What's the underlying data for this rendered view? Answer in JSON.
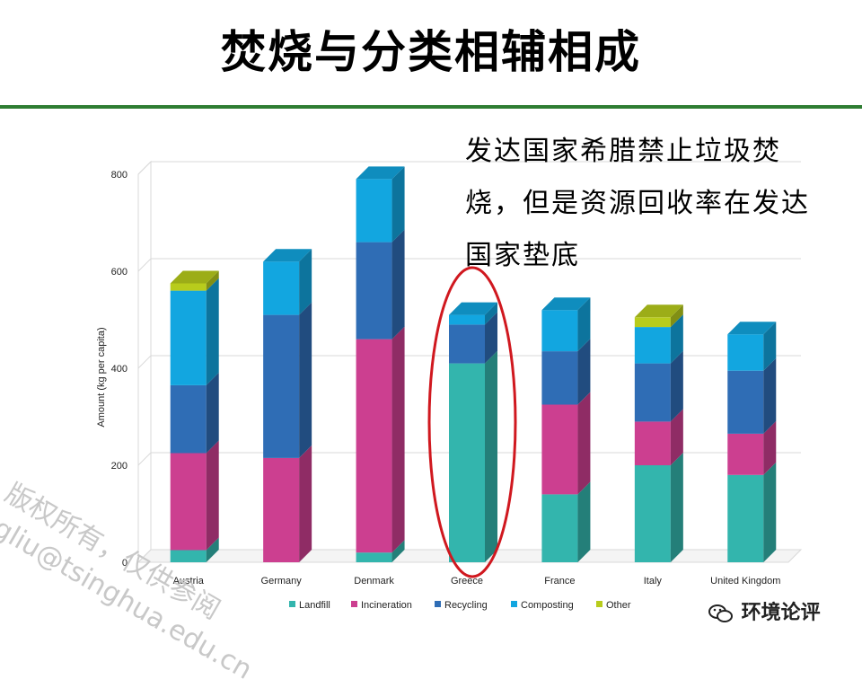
{
  "title": "焚烧与分类相辅相成",
  "callout_lines": [
    "发达国家希腊禁止垃圾焚",
    "烧，但是资源回收率在发达",
    "国家垫底"
  ],
  "watermark_lines": [
    "版权所有，仅供参阅",
    "jgliu@tsinghua.edu.cn"
  ],
  "wechat_label": "环境论评",
  "chart_data": {
    "type": "bar",
    "stacked": true,
    "categories": [
      "Austria",
      "Germany",
      "Denmark",
      "Greece",
      "France",
      "Italy",
      "United Kingdom"
    ],
    "ylabel": "Amount (kg per capita)",
    "ylim": [
      0,
      800
    ],
    "yticks": [
      0,
      200,
      400,
      600,
      800
    ],
    "grid": true,
    "legend_position": "bottom",
    "series": [
      {
        "name": "Landfill",
        "color": "#33b5ad",
        "values": [
          25,
          0,
          20,
          410,
          140,
          200,
          180
        ]
      },
      {
        "name": "Incineration",
        "color": "#cc3f90",
        "values": [
          200,
          215,
          440,
          0,
          185,
          90,
          85
        ]
      },
      {
        "name": "Recycling",
        "color": "#2f6db5",
        "values": [
          140,
          295,
          200,
          80,
          110,
          120,
          130
        ]
      },
      {
        "name": "Composting",
        "color": "#12a6e0",
        "values": [
          195,
          110,
          130,
          20,
          85,
          75,
          75
        ]
      },
      {
        "name": "Other",
        "color": "#b8cc1c",
        "values": [
          15,
          0,
          0,
          0,
          0,
          20,
          0
        ]
      }
    ],
    "highlight_category": "Greece"
  }
}
